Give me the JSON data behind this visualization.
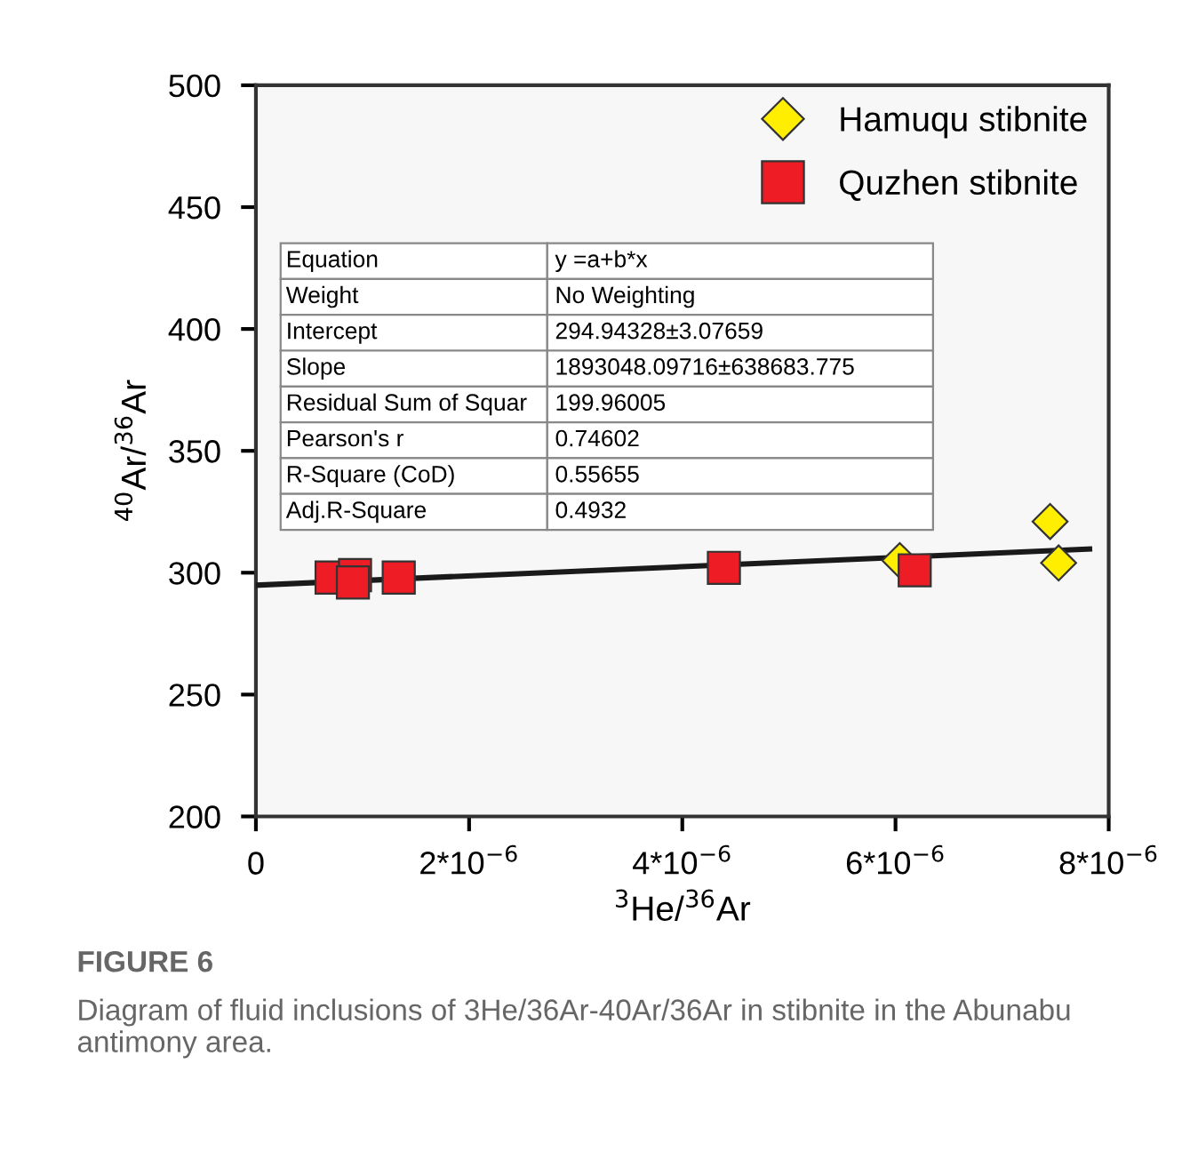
{
  "chart_data": {
    "type": "scatter",
    "xlabel": "$^{3}$He/$^{36}$Ar",
    "ylabel": "$^{40}$Ar/$^{36}$Ar",
    "xlim": [
      0,
      8e-06
    ],
    "ylim": [
      200,
      500
    ],
    "xticks": [
      0,
      {
        "value": 2e-06,
        "label": "2*10$^{−6}$"
      },
      {
        "value": 4e-06,
        "label": "4*10$^{−6}$"
      },
      {
        "value": 6e-06,
        "label": "6*10$^{−6}$"
      },
      {
        "value": 8e-06,
        "label": "8*10$^{−6}$"
      }
    ],
    "yticks": [
      200,
      250,
      300,
      350,
      400,
      450,
      500
    ],
    "grid": false,
    "legend": "top right",
    "series": [
      {
        "name": "Hamuqu stibnite",
        "color": "#ffee00",
        "marker": "diamond",
        "x": [
          6.04e-06,
          7.45e-06,
          7.53e-06
        ],
        "values": [
          305,
          321,
          304
        ]
      },
      {
        "name": "Quzhen stibnite",
        "color": "#ee1c25",
        "marker": "square",
        "x": [
          7.1e-07,
          9.3e-07,
          9.1e-07,
          1.34e-06,
          4.39e-06,
          6.18e-06
        ],
        "values": [
          298,
          299,
          296,
          298,
          302,
          301
        ]
      },
      {
        "type": "line",
        "color": "#1a1a1a",
        "marker": "none",
        "x": [
          0,
          7.82e-06
        ],
        "values": [
          294.9,
          309.7
        ]
      }
    ],
    "annotations": [
      "Equation",
      "y =a+b*x",
      "Weight",
      "No Weighting",
      "Intercept",
      "294.94328±3.07659",
      "Slope",
      "1893048.09716±638683.775",
      "Residual Sum of Squar",
      "199.96005",
      "Pearson's r",
      "0.74602",
      "R-Square (CoD)",
      "0.55655",
      "Adj.R-Square",
      "0.4932",
      "FIGURE 6",
      "Diagram of fluid inclusions of 3He/36Ar-40Ar/36Ar in stibnite in the Abunabu antimony area."
    ]
  }
}
